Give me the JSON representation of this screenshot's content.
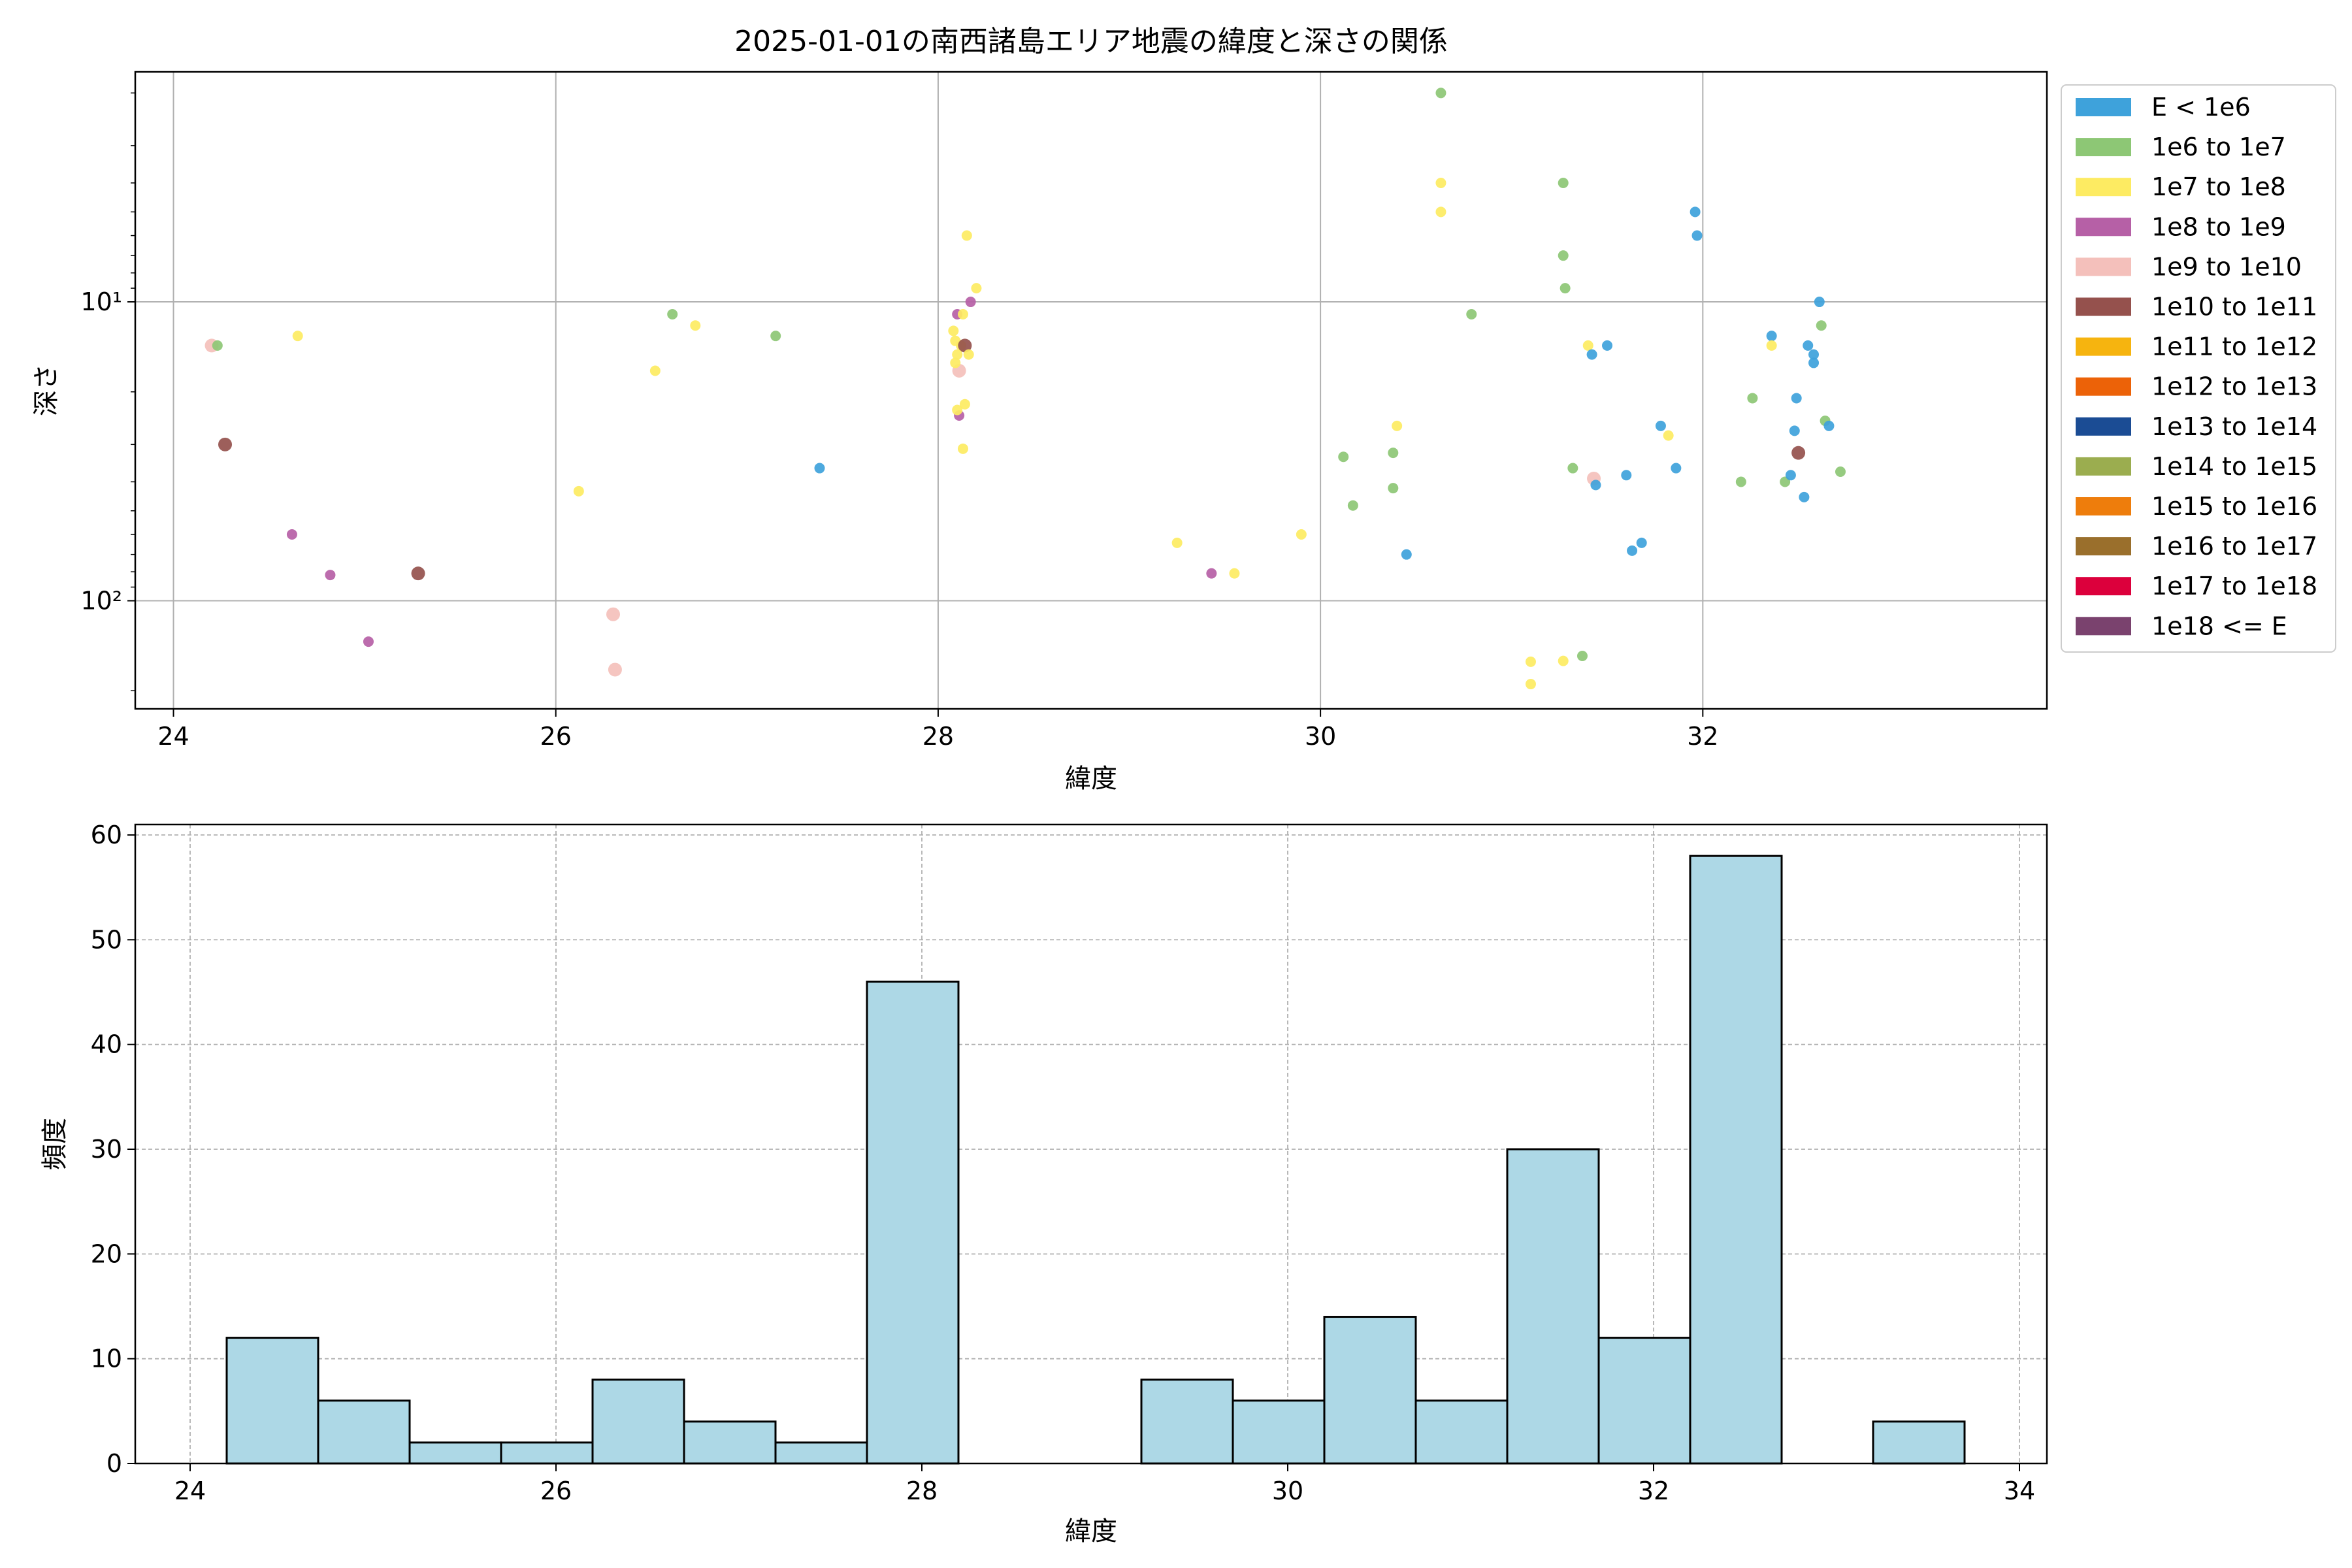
{
  "chart_data": [
    {
      "type": "scatter",
      "title": "2025-01-01の南西諸島エリア地震の緯度と深さの関係",
      "xlabel": "緯度",
      "ylabel": "深さ",
      "xlim": [
        23.8,
        33.8
      ],
      "ylim": [
        230,
        1.7
      ],
      "y_scale": "log",
      "y_inverted": true,
      "x_ticks": [
        24,
        26,
        28,
        30,
        32
      ],
      "x_tick_labels": [
        "24",
        "26",
        "28",
        "30",
        "32"
      ],
      "y_ticks": [
        10,
        100
      ],
      "y_tick_labels": [
        "10¹",
        "10²"
      ],
      "grid": true,
      "legend_position": "outside-right",
      "legend": [
        {
          "label": "E < 1e6",
          "color": "#3ea2db"
        },
        {
          "label": "1e6 to 1e7",
          "color": "#8dc775"
        },
        {
          "label": "1e7 to 1e8",
          "color": "#fdeb62"
        },
        {
          "label": "1e8 to 1e9",
          "color": "#b660a6"
        },
        {
          "label": "1e9 to 1e10",
          "color": "#f4c0bb"
        },
        {
          "label": "1e10 to 1e11",
          "color": "#95514d"
        },
        {
          "label": "1e11 to 1e12",
          "color": "#f6b40f"
        },
        {
          "label": "1e12 to 1e13",
          "color": "#ec6208"
        },
        {
          "label": "1e13 to 1e14",
          "color": "#1b4c94"
        },
        {
          "label": "1e14 to 1e15",
          "color": "#9bad4f"
        },
        {
          "label": "1e15 to 1e16",
          "color": "#ee7d0c"
        },
        {
          "label": "1e16 to 1e17",
          "color": "#9a6f2c"
        },
        {
          "label": "1e17 to 1e18",
          "color": "#dc003c"
        },
        {
          "label": "1e18 <= E",
          "color": "#7a426e"
        }
      ],
      "points": [
        {
          "x": 24.2,
          "y": 14,
          "c": 4
        },
        {
          "x": 24.23,
          "y": 14,
          "c": 1
        },
        {
          "x": 24.27,
          "y": 30,
          "c": 5
        },
        {
          "x": 24.65,
          "y": 13,
          "c": 2
        },
        {
          "x": 24.62,
          "y": 60,
          "c": 3
        },
        {
          "x": 24.82,
          "y": 82,
          "c": 3
        },
        {
          "x": 25.02,
          "y": 137,
          "c": 3
        },
        {
          "x": 25.28,
          "y": 81,
          "c": 5
        },
        {
          "x": 26.12,
          "y": 43,
          "c": 2
        },
        {
          "x": 26.52,
          "y": 17,
          "c": 2
        },
        {
          "x": 26.3,
          "y": 111,
          "c": 4
        },
        {
          "x": 26.31,
          "y": 170,
          "c": 4
        },
        {
          "x": 26.61,
          "y": 11,
          "c": 1
        },
        {
          "x": 26.73,
          "y": 12,
          "c": 2
        },
        {
          "x": 27.15,
          "y": 13,
          "c": 1
        },
        {
          "x": 27.38,
          "y": 36,
          "c": 0
        },
        {
          "x": 28.1,
          "y": 11,
          "c": 3
        },
        {
          "x": 28.13,
          "y": 11,
          "c": 2
        },
        {
          "x": 28.08,
          "y": 12.5,
          "c": 2
        },
        {
          "x": 28.09,
          "y": 13.5,
          "c": 2
        },
        {
          "x": 28.12,
          "y": 14,
          "c": 2
        },
        {
          "x": 28.14,
          "y": 14,
          "c": 5
        },
        {
          "x": 28.1,
          "y": 15,
          "c": 2
        },
        {
          "x": 28.16,
          "y": 15,
          "c": 2
        },
        {
          "x": 28.11,
          "y": 17,
          "c": 4
        },
        {
          "x": 28.09,
          "y": 16,
          "c": 2
        },
        {
          "x": 28.14,
          "y": 22,
          "c": 2
        },
        {
          "x": 28.11,
          "y": 24,
          "c": 3
        },
        {
          "x": 28.1,
          "y": 23,
          "c": 2
        },
        {
          "x": 28.13,
          "y": 31,
          "c": 2
        },
        {
          "x": 28.15,
          "y": 6,
          "c": 2
        },
        {
          "x": 28.2,
          "y": 9,
          "c": 2
        },
        {
          "x": 28.17,
          "y": 10,
          "c": 3
        },
        {
          "x": 29.25,
          "y": 64,
          "c": 2
        },
        {
          "x": 29.43,
          "y": 81,
          "c": 3
        },
        {
          "x": 29.55,
          "y": 81,
          "c": 2
        },
        {
          "x": 29.9,
          "y": 60,
          "c": 2
        },
        {
          "x": 30.12,
          "y": 33,
          "c": 1
        },
        {
          "x": 30.17,
          "y": 48,
          "c": 1
        },
        {
          "x": 30.38,
          "y": 32,
          "c": 1
        },
        {
          "x": 30.38,
          "y": 42,
          "c": 1
        },
        {
          "x": 30.4,
          "y": 26,
          "c": 2
        },
        {
          "x": 30.45,
          "y": 70,
          "c": 0
        },
        {
          "x": 30.63,
          "y": 2,
          "c": 1
        },
        {
          "x": 30.63,
          "y": 4,
          "c": 2
        },
        {
          "x": 30.63,
          "y": 5,
          "c": 2
        },
        {
          "x": 30.79,
          "y": 11,
          "c": 1
        },
        {
          "x": 31.1,
          "y": 160,
          "c": 2
        },
        {
          "x": 31.1,
          "y": 190,
          "c": 2
        },
        {
          "x": 31.27,
          "y": 159,
          "c": 2
        },
        {
          "x": 31.27,
          "y": 4,
          "c": 1
        },
        {
          "x": 31.27,
          "y": 7,
          "c": 1
        },
        {
          "x": 31.28,
          "y": 9,
          "c": 1
        },
        {
          "x": 31.32,
          "y": 36,
          "c": 1
        },
        {
          "x": 31.37,
          "y": 153,
          "c": 1
        },
        {
          "x": 31.4,
          "y": 14,
          "c": 2
        },
        {
          "x": 31.42,
          "y": 15,
          "c": 0
        },
        {
          "x": 31.43,
          "y": 39,
          "c": 4
        },
        {
          "x": 31.44,
          "y": 41,
          "c": 0
        },
        {
          "x": 31.5,
          "y": 14,
          "c": 0
        },
        {
          "x": 31.6,
          "y": 38,
          "c": 0
        },
        {
          "x": 31.63,
          "y": 68,
          "c": 0
        },
        {
          "x": 31.68,
          "y": 64,
          "c": 0
        },
        {
          "x": 31.78,
          "y": 26,
          "c": 0
        },
        {
          "x": 31.82,
          "y": 28,
          "c": 2
        },
        {
          "x": 31.86,
          "y": 36,
          "c": 0
        },
        {
          "x": 31.96,
          "y": 5,
          "c": 0
        },
        {
          "x": 31.97,
          "y": 6,
          "c": 0
        },
        {
          "x": 32.2,
          "y": 40,
          "c": 1
        },
        {
          "x": 32.26,
          "y": 21,
          "c": 1
        },
        {
          "x": 32.36,
          "y": 13,
          "c": 0
        },
        {
          "x": 32.36,
          "y": 14,
          "c": 2
        },
        {
          "x": 32.43,
          "y": 40,
          "c": 1
        },
        {
          "x": 32.46,
          "y": 38,
          "c": 0
        },
        {
          "x": 32.48,
          "y": 27,
          "c": 0
        },
        {
          "x": 32.49,
          "y": 21,
          "c": 0
        },
        {
          "x": 32.5,
          "y": 32,
          "c": 5
        },
        {
          "x": 32.53,
          "y": 45,
          "c": 0
        },
        {
          "x": 32.55,
          "y": 14,
          "c": 0
        },
        {
          "x": 32.58,
          "y": 15,
          "c": 0
        },
        {
          "x": 32.58,
          "y": 16,
          "c": 0
        },
        {
          "x": 32.61,
          "y": 10,
          "c": 0
        },
        {
          "x": 32.62,
          "y": 12,
          "c": 1
        },
        {
          "x": 32.64,
          "y": 25,
          "c": 1
        },
        {
          "x": 32.66,
          "y": 26,
          "c": 0
        },
        {
          "x": 32.72,
          "y": 37,
          "c": 1
        }
      ]
    },
    {
      "type": "bar",
      "subtype": "histogram",
      "xlabel": "緯度",
      "ylabel": "頻度",
      "xlim": [
        23.7,
        34.15
      ],
      "ylim": [
        0,
        61
      ],
      "x_ticks": [
        24,
        26,
        28,
        30,
        32,
        34
      ],
      "x_tick_labels": [
        "24",
        "26",
        "28",
        "30",
        "32",
        "34"
      ],
      "y_ticks": [
        0,
        10,
        20,
        30,
        40,
        50,
        60
      ],
      "y_tick_labels": [
        "0",
        "10",
        "20",
        "30",
        "40",
        "50",
        "60"
      ],
      "grid": true,
      "bar_color": "#add8e6",
      "bin_start": 24.2,
      "bin_width": 0.5,
      "values": [
        12,
        6,
        2,
        2,
        8,
        4,
        2,
        46,
        0,
        0,
        8,
        6,
        14,
        6,
        30,
        12,
        58,
        0,
        4
      ]
    }
  ]
}
